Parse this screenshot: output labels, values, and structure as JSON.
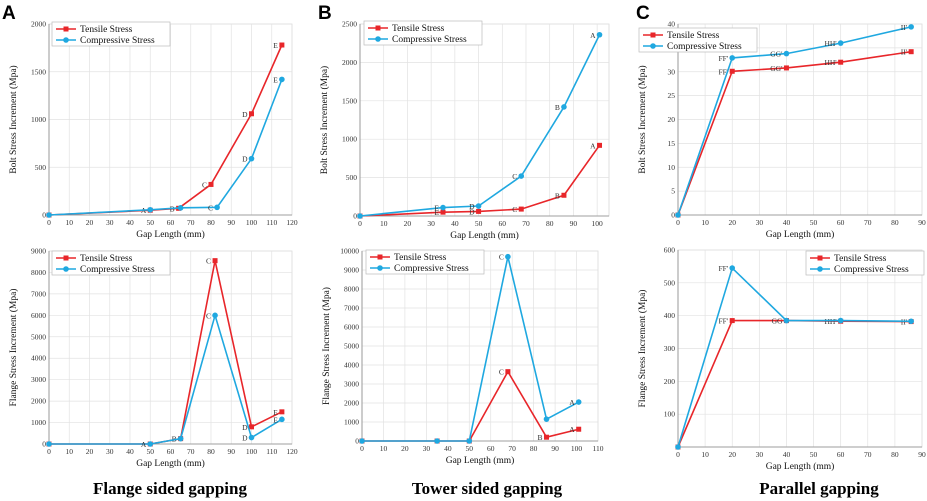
{
  "panel_labels": [
    "A",
    "B",
    "C"
  ],
  "captions": [
    "Flange sided gapping",
    "Tower sided gapping",
    "Parallel gapping"
  ],
  "colors": {
    "tensile": "#e8262a",
    "compressive": "#1fa8e0"
  },
  "chart_data": [
    {
      "id": "A-bolt",
      "type": "line",
      "xlabel": "Gap Length (mm)",
      "ylabel": "Bolt Stress Increment (Mpa)",
      "xlim": [
        0,
        120
      ],
      "ylim": [
        0,
        2000
      ],
      "xticks": [
        0,
        10,
        20,
        30,
        40,
        50,
        60,
        70,
        80,
        90,
        100,
        110,
        120
      ],
      "yticks": [
        0,
        500,
        1000,
        1500,
        2000
      ],
      "legend": [
        "Tensile Stress",
        "Compressive Stress"
      ],
      "series": [
        {
          "name": "Tensile Stress",
          "points": [
            [
              0,
              0
            ],
            [
              50,
              50
            ],
            [
              64,
              70
            ],
            [
              80,
              320
            ],
            [
              100,
              1060
            ],
            [
              115,
              1780
            ]
          ],
          "labels": [
            "",
            "A",
            "B",
            "C",
            "D",
            "E"
          ]
        },
        {
          "name": "Compressive Stress",
          "points": [
            [
              0,
              0
            ],
            [
              50,
              55
            ],
            [
              65,
              75
            ],
            [
              83,
              80
            ],
            [
              100,
              590
            ],
            [
              115,
              1420
            ]
          ],
          "labels": [
            "",
            "",
            "",
            "C",
            "D",
            "E"
          ]
        }
      ]
    },
    {
      "id": "B-bolt",
      "type": "line",
      "xlabel": "Gap Length (mm)",
      "ylabel": "Bolt Stress Increment (Mpa)",
      "xlim": [
        0,
        105
      ],
      "ylim": [
        0,
        2500
      ],
      "xticks": [
        0,
        10,
        20,
        30,
        40,
        50,
        60,
        70,
        80,
        90,
        100
      ],
      "yticks": [
        0,
        500,
        1000,
        1500,
        2000,
        2500
      ],
      "legend": [
        "Tensile Stress",
        "Compressive Stress"
      ],
      "series": [
        {
          "name": "Tensile Stress",
          "points": [
            [
              0,
              0
            ],
            [
              35,
              50
            ],
            [
              50,
              60
            ],
            [
              68,
              90
            ],
            [
              86,
              270
            ],
            [
              101,
              920
            ]
          ],
          "labels": [
            "",
            "E",
            "D",
            "C",
            "B",
            "A"
          ]
        },
        {
          "name": "Compressive Stress",
          "points": [
            [
              0,
              0
            ],
            [
              35,
              110
            ],
            [
              50,
              130
            ],
            [
              68,
              520
            ],
            [
              86,
              1420
            ],
            [
              101,
              2360
            ]
          ],
          "labels": [
            "",
            "E",
            "D",
            "C",
            "B",
            "A"
          ]
        }
      ]
    },
    {
      "id": "C-bolt",
      "type": "line",
      "xlabel": "Gap Length (mm)",
      "ylabel": "Bolt Stress Increment (Mpa)",
      "xlim": [
        0,
        90
      ],
      "ylim": [
        0,
        40
      ],
      "xticks": [
        0,
        10,
        20,
        30,
        40,
        50,
        60,
        70,
        80,
        90
      ],
      "yticks": [
        0,
        5,
        10,
        15,
        20,
        25,
        30,
        35,
        40
      ],
      "legend": [
        "Tensile Stress",
        "Compressive Stress"
      ],
      "series": [
        {
          "name": "Tensile Stress",
          "points": [
            [
              0,
              0
            ],
            [
              20,
              30.1
            ],
            [
              40,
              30.8
            ],
            [
              60,
              32
            ],
            [
              86,
              34.2
            ]
          ],
          "labels": [
            "",
            "FF'",
            "GG'",
            "HH'",
            "II'"
          ]
        },
        {
          "name": "Compressive Stress",
          "points": [
            [
              0,
              0
            ],
            [
              20,
              32.9
            ],
            [
              40,
              33.8
            ],
            [
              60,
              36
            ],
            [
              86,
              39.4
            ]
          ],
          "labels": [
            "",
            "FF'",
            "GG'",
            "HH'",
            "II'"
          ]
        }
      ]
    },
    {
      "id": "A-flange",
      "type": "line",
      "xlabel": "Gap Length (mm)",
      "ylabel": "Flange Stress Increment (Mpa)",
      "xlim": [
        0,
        120
      ],
      "ylim": [
        0,
        9000
      ],
      "xticks": [
        0,
        10,
        20,
        30,
        40,
        50,
        60,
        70,
        80,
        90,
        100,
        110,
        120
      ],
      "yticks": [
        0,
        1000,
        2000,
        3000,
        4000,
        5000,
        6000,
        7000,
        8000,
        9000
      ],
      "legend": [
        "Tensile Stress",
        "Compressive Stress"
      ],
      "series": [
        {
          "name": "Tensile Stress",
          "points": [
            [
              0,
              0
            ],
            [
              50,
              0
            ],
            [
              65,
              250
            ],
            [
              82,
              8550
            ],
            [
              100,
              800
            ],
            [
              115,
              1500
            ]
          ],
          "labels": [
            "",
            "",
            "B",
            "C",
            "D",
            "E"
          ]
        },
        {
          "name": "Compressive Stress",
          "points": [
            [
              0,
              0
            ],
            [
              50,
              0
            ],
            [
              65,
              250
            ],
            [
              82,
              6000
            ],
            [
              100,
              300
            ],
            [
              115,
              1150
            ]
          ],
          "labels": [
            "",
            "A",
            "",
            "C",
            "D",
            "E"
          ]
        }
      ]
    },
    {
      "id": "B-flange",
      "type": "line",
      "xlabel": "Gap Length (mm)",
      "ylabel": "Flange Stress Increment (Mpa)",
      "xlim": [
        0,
        110
      ],
      "ylim": [
        0,
        10000
      ],
      "xticks": [
        0,
        10,
        20,
        30,
        40,
        50,
        60,
        70,
        80,
        90,
        100,
        110
      ],
      "yticks": [
        0,
        1000,
        2000,
        3000,
        4000,
        5000,
        6000,
        7000,
        8000,
        9000,
        10000
      ],
      "legend": [
        "Tensile Stress",
        "Compressive Stress"
      ],
      "series": [
        {
          "name": "Tensile Stress",
          "points": [
            [
              0,
              0
            ],
            [
              35,
              0
            ],
            [
              50,
              0
            ],
            [
              68,
              3650
            ],
            [
              86,
              200
            ],
            [
              101,
              620
            ]
          ],
          "labels": [
            "",
            "",
            "",
            "C",
            "B",
            "A"
          ]
        },
        {
          "name": "Compressive Stress",
          "points": [
            [
              0,
              0
            ],
            [
              35,
              0
            ],
            [
              50,
              0
            ],
            [
              68,
              9700
            ],
            [
              86,
              1150
            ],
            [
              101,
              2050
            ]
          ],
          "labels": [
            "",
            "",
            "",
            "C",
            "",
            "A"
          ]
        }
      ]
    },
    {
      "id": "C-flange",
      "type": "line",
      "xlabel": "Gap Length (mm)",
      "ylabel": "Flange Stress Increment (Mpa)",
      "xlim": [
        0,
        90
      ],
      "ylim": [
        0,
        600
      ],
      "xticks": [
        0,
        10,
        20,
        30,
        40,
        50,
        60,
        70,
        80,
        90
      ],
      "yticks": [
        100,
        200,
        300,
        400,
        500,
        600
      ],
      "legend": [
        "Tensile Stress",
        "Compressive Stress"
      ],
      "series": [
        {
          "name": "Tensile Stress",
          "points": [
            [
              0,
              0
            ],
            [
              20,
              385
            ],
            [
              40,
              385
            ],
            [
              60,
              383
            ],
            [
              86,
              382
            ]
          ],
          "labels": [
            "",
            "FF'",
            "GG",
            "HH'",
            "II'"
          ]
        },
        {
          "name": "Compressive Stress",
          "points": [
            [
              0,
              0
            ],
            [
              20,
              545
            ],
            [
              40,
              385
            ],
            [
              60,
              385
            ],
            [
              86,
              383
            ]
          ],
          "labels": [
            "",
            "FF'",
            "",
            "",
            ""
          ]
        }
      ]
    }
  ]
}
